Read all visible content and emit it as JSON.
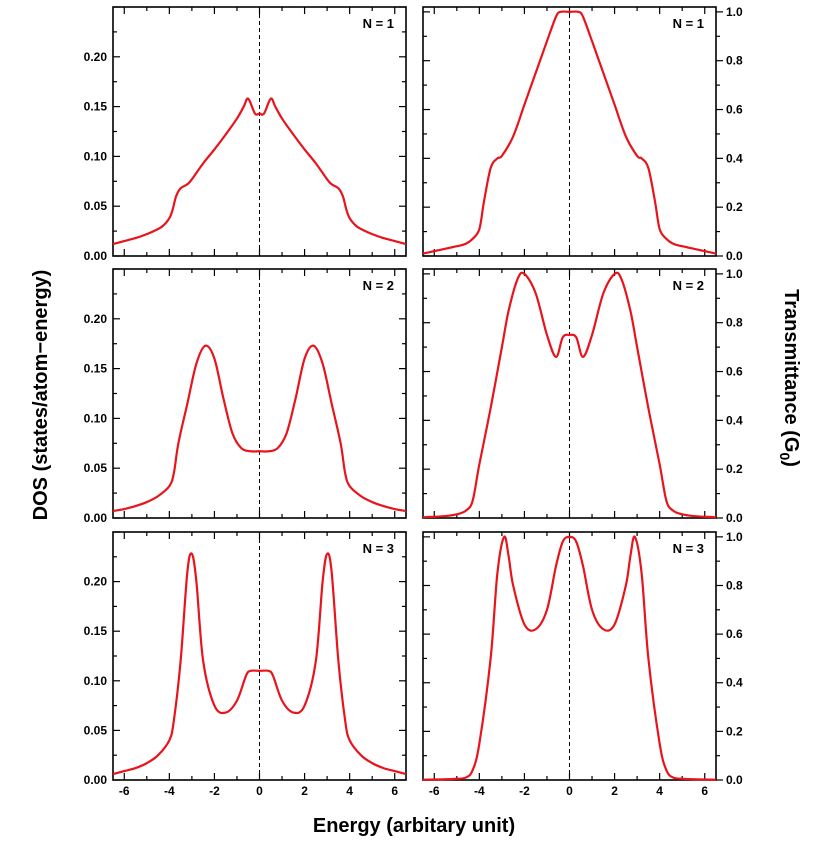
{
  "chart_data": {
    "type": "line",
    "xlabel": "Energy (arbitary unit)",
    "ylabel_left": "DOS (states/atom−energy)",
    "ylabel_right_main": "Transmittance (G",
    "ylabel_right_sub": "0",
    "ylabel_right_close": ")",
    "x_ticks": [
      "-6",
      "-4",
      "-2",
      "0",
      "2",
      "4",
      "6"
    ],
    "xlim": [
      -6.5,
      6.5
    ],
    "dos_ylim": [
      0,
      0.25
    ],
    "dos_ticks": [
      "0.00",
      "0.05",
      "0.10",
      "0.15",
      "0.20"
    ],
    "trans_ylim": [
      0,
      1.02
    ],
    "trans_ticks": [
      "0.0",
      "0.2",
      "0.4",
      "0.6",
      "0.8",
      "1.0"
    ],
    "series_color": "#e8141c",
    "dashed_line_x": 0,
    "panels": [
      {
        "label": "N = 1",
        "dos": {
          "x": [
            0,
            0.2,
            0.5,
            0.7,
            1.0,
            1.5,
            2.0,
            2.5,
            3.0,
            3.2,
            3.5,
            3.7,
            3.85,
            4.0,
            4.3,
            4.6,
            5.0,
            5.5,
            6.0,
            6.5
          ],
          "y": [
            0.143,
            0.143,
            0.158,
            0.15,
            0.138,
            0.122,
            0.107,
            0.093,
            0.077,
            0.072,
            0.068,
            0.06,
            0.047,
            0.038,
            0.03,
            0.026,
            0.022,
            0.018,
            0.015,
            0.012
          ]
        },
        "trans": {
          "x": [
            0,
            0.4,
            0.6,
            1.0,
            1.5,
            2.0,
            2.5,
            3.0,
            3.2,
            3.5,
            3.8,
            4.0,
            4.3,
            4.6,
            5.0,
            5.5,
            6.0,
            6.5
          ],
          "y": [
            1.0,
            1.0,
            0.98,
            0.88,
            0.75,
            0.62,
            0.49,
            0.41,
            0.4,
            0.36,
            0.22,
            0.11,
            0.07,
            0.05,
            0.04,
            0.03,
            0.02,
            0.01
          ]
        }
      },
      {
        "label": "N = 2",
        "dos": {
          "x": [
            0,
            0.4,
            0.8,
            1.2,
            1.6,
            2.0,
            2.4,
            2.8,
            3.2,
            3.6,
            3.8,
            4.0,
            4.5,
            5.0,
            5.5,
            6.0,
            6.5
          ],
          "y": [
            0.067,
            0.067,
            0.07,
            0.085,
            0.12,
            0.16,
            0.173,
            0.155,
            0.115,
            0.075,
            0.045,
            0.032,
            0.022,
            0.016,
            0.012,
            0.009,
            0.007
          ]
        },
        "trans": {
          "x": [
            0,
            0.3,
            0.6,
            1.0,
            1.5,
            2.0,
            2.3,
            2.7,
            3.0,
            3.5,
            4.0,
            4.3,
            4.6,
            5.0,
            5.5,
            6.0,
            6.5
          ],
          "y": [
            0.75,
            0.74,
            0.66,
            0.75,
            0.92,
            1.0,
            0.98,
            0.85,
            0.7,
            0.45,
            0.22,
            0.07,
            0.03,
            0.015,
            0.008,
            0.005,
            0.003
          ]
        }
      },
      {
        "label": "N = 3",
        "dos": {
          "x": [
            0,
            0.4,
            0.6,
            1.0,
            1.5,
            2.0,
            2.5,
            2.8,
            3.0,
            3.2,
            3.5,
            3.8,
            4.0,
            4.5,
            5.0,
            5.5,
            6.0,
            6.5
          ],
          "y": [
            0.11,
            0.11,
            0.105,
            0.08,
            0.068,
            0.075,
            0.12,
            0.2,
            0.228,
            0.21,
            0.12,
            0.06,
            0.04,
            0.025,
            0.017,
            0.012,
            0.009,
            0.006
          ]
        },
        "trans": {
          "x": [
            0,
            0.3,
            0.6,
            1.0,
            1.5,
            2.0,
            2.5,
            2.7,
            2.9,
            3.2,
            3.5,
            4.0,
            4.3,
            4.6,
            5.0,
            5.5,
            6.0,
            6.5
          ],
          "y": [
            1.0,
            0.98,
            0.88,
            0.7,
            0.62,
            0.64,
            0.8,
            0.92,
            1.0,
            0.85,
            0.5,
            0.15,
            0.04,
            0.01,
            0.005,
            0.003,
            0.002,
            0.001
          ]
        }
      }
    ]
  }
}
